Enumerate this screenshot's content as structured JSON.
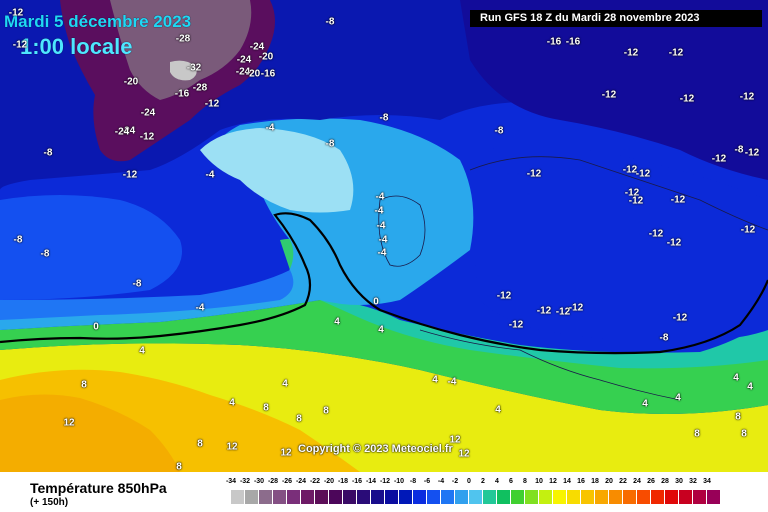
{
  "header": {
    "date": "Mardi 5 décembre 2023",
    "time": "1:00 locale",
    "run": "Run GFS 18 Z du Mardi 28 novembre 2023"
  },
  "copyright": "Copyright © 2023 Meteociel.fr",
  "footer": {
    "variable": "Température 850hPa",
    "lead": "(+ 150h)"
  },
  "scale": {
    "labels": [
      "-34",
      "-32",
      "-30",
      "-28",
      "-26",
      "-24",
      "-22",
      "-20",
      "-18",
      "-16",
      "-14",
      "-12",
      "-10",
      "-8",
      "-6",
      "-4",
      "-2",
      "0",
      "2",
      "4",
      "6",
      "8",
      "10",
      "12",
      "14",
      "16",
      "18",
      "20",
      "22",
      "24",
      "26",
      "28",
      "30",
      "32",
      "34"
    ],
    "colors": [
      "#c8c8c8",
      "#a8a8a8",
      "#8c6c8c",
      "#845084",
      "#7a2f7a",
      "#6e1a66",
      "#5c0e58",
      "#4c065a",
      "#3a0a66",
      "#2a0c78",
      "#180d8c",
      "#0a0ca0",
      "#0018b8",
      "#0a2ce0",
      "#1450f0",
      "#1f76f4",
      "#30a0ee",
      "#50c4ee",
      "#22c898",
      "#10c060",
      "#40d030",
      "#80e020",
      "#c4f010",
      "#f8f400",
      "#f8dc00",
      "#f8c400",
      "#f8a800",
      "#f88c00",
      "#f86c00",
      "#f84c00",
      "#f02800",
      "#e00808",
      "#c80020",
      "#b00040",
      "#980058"
    ]
  },
  "map_colors": {
    "ocean_cold": "#0c2ad8",
    "deep_blue": "#0a18b0",
    "purple": "#5a0e5e",
    "cyan": "#3cb8f0",
    "green": "#22c890",
    "yellow": "#f8ec00",
    "orange": "#f8b800"
  },
  "isotherm_labels": [
    "-8",
    "-28",
    "-24",
    "-24",
    "-20",
    "-32",
    "-24",
    "-20",
    "-16",
    "-20",
    "-16",
    "-24",
    "-28",
    "-12",
    "-24",
    "-12",
    "-24",
    "-12",
    "-8",
    "-4",
    "-8",
    "-8",
    "-4",
    "-12",
    "-12",
    "-4",
    "-4",
    "-4",
    "-4",
    "-4",
    "-8",
    "-8",
    "-8",
    "-8",
    "-4",
    "0",
    "0",
    "4",
    "4",
    "4",
    "4",
    "4",
    "4",
    "8",
    "8",
    "8",
    "8",
    "8",
    "8",
    "12",
    "12",
    "12",
    "12",
    "12",
    "-16",
    "-16",
    "-12",
    "-12",
    "-12",
    "-12",
    "-12",
    "-12",
    "-8",
    "-12",
    "-12",
    "-12",
    "-12",
    "-12",
    "-12",
    "-12",
    "-12",
    "-12",
    "-12",
    "-12",
    "-12",
    "-12",
    "-12",
    "-12",
    "-12",
    "-8",
    "-4",
    "4",
    "4",
    "4",
    "4",
    "4",
    "8",
    "8",
    "8",
    "12"
  ]
}
